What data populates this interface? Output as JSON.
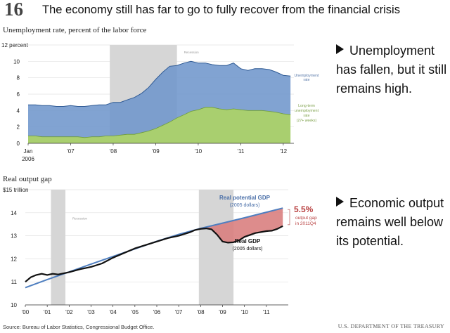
{
  "header": {
    "slide_number": "16",
    "title": "The economy still has far to go to fully recover from the financial crisis"
  },
  "bullets": [
    {
      "text": "Unemployment has fallen, but it still remains high."
    },
    {
      "text": "Economic output remains well below its potential."
    }
  ],
  "footer": {
    "source": "Source: Bureau of Labor Statistics, Congressional Budget Office.",
    "agency": "U.S. DEPARTMENT OF THE TREASURY"
  },
  "colors": {
    "unemployment_fill": "#6f96cc",
    "longterm_fill": "#a9cf6f",
    "recession": "#d6d6d6",
    "potential_line": "#4f7fc0",
    "gap_fill": "#d98080",
    "gap_text": "#b84040",
    "real_gdp_line": "#111111"
  },
  "chart_data": [
    {
      "type": "area",
      "title": "Unemployment rate, percent of the labor force",
      "x_tick_labels": [
        "Jan\n2006",
        "'07",
        "'08",
        "'09",
        "'10",
        "'11",
        "'12"
      ],
      "x_ticks": [
        2006.0,
        2007.0,
        2008.0,
        2009.0,
        2010.0,
        2011.0,
        2012.0
      ],
      "xlim": [
        2006.0,
        2012.25
      ],
      "ylim": [
        0,
        12
      ],
      "y_ticks": [
        0,
        2,
        4,
        6,
        8,
        10,
        12
      ],
      "y_tick_labels": [
        "0",
        "2",
        "4",
        "6",
        "8",
        "10",
        "12 percent"
      ],
      "recession": {
        "start": 2007.92,
        "end": 2009.5,
        "label": "Recession"
      },
      "series": [
        {
          "name": "Unemployment rate",
          "label": "Unemployment rate",
          "x": [
            2006.0,
            2006.17,
            2006.33,
            2006.5,
            2006.67,
            2006.83,
            2007.0,
            2007.17,
            2007.33,
            2007.5,
            2007.67,
            2007.83,
            2008.0,
            2008.17,
            2008.33,
            2008.5,
            2008.67,
            2008.83,
            2009.0,
            2009.17,
            2009.33,
            2009.5,
            2009.67,
            2009.83,
            2010.0,
            2010.17,
            2010.33,
            2010.5,
            2010.67,
            2010.83,
            2011.0,
            2011.17,
            2011.33,
            2011.5,
            2011.67,
            2011.83,
            2012.0,
            2012.17
          ],
          "values": [
            4.7,
            4.7,
            4.6,
            4.6,
            4.5,
            4.5,
            4.6,
            4.5,
            4.5,
            4.6,
            4.7,
            4.7,
            5.0,
            5.0,
            5.3,
            5.6,
            6.1,
            6.8,
            7.8,
            8.7,
            9.4,
            9.5,
            9.8,
            10.0,
            9.8,
            9.8,
            9.6,
            9.5,
            9.5,
            9.8,
            9.1,
            8.9,
            9.1,
            9.1,
            9.0,
            8.7,
            8.3,
            8.2
          ]
        },
        {
          "name": "Long-term unemployment rate (27+ weeks)",
          "label": "Long-term unemployment rate (27+ weeks)",
          "x": [
            2006.0,
            2006.17,
            2006.33,
            2006.5,
            2006.67,
            2006.83,
            2007.0,
            2007.17,
            2007.33,
            2007.5,
            2007.67,
            2007.83,
            2008.0,
            2008.17,
            2008.33,
            2008.5,
            2008.67,
            2008.83,
            2009.0,
            2009.17,
            2009.33,
            2009.5,
            2009.67,
            2009.83,
            2010.0,
            2010.17,
            2010.33,
            2010.5,
            2010.67,
            2010.83,
            2011.0,
            2011.17,
            2011.33,
            2011.5,
            2011.67,
            2011.83,
            2012.0,
            2012.17
          ],
          "values": [
            0.9,
            0.9,
            0.8,
            0.8,
            0.8,
            0.8,
            0.8,
            0.8,
            0.7,
            0.8,
            0.8,
            0.9,
            0.9,
            1.0,
            1.1,
            1.1,
            1.3,
            1.5,
            1.8,
            2.2,
            2.6,
            3.1,
            3.5,
            3.9,
            4.1,
            4.4,
            4.4,
            4.2,
            4.1,
            4.2,
            4.1,
            4.0,
            4.0,
            4.0,
            3.9,
            3.8,
            3.6,
            3.5
          ]
        }
      ]
    },
    {
      "type": "line",
      "title": "Real output gap",
      "x_tick_labels": [
        "'00",
        "'01",
        "'02",
        "'03",
        "'04",
        "'05",
        "'06",
        "'07",
        "'08",
        "'09",
        "'10",
        "'11"
      ],
      "x_ticks": [
        2000,
        2001,
        2002,
        2003,
        2004,
        2005,
        2006,
        2007,
        2008,
        2009,
        2010,
        2011
      ],
      "xlim": [
        2000,
        2012
      ],
      "ylim": [
        10,
        15
      ],
      "y_ticks": [
        10,
        11,
        12,
        13,
        14,
        15
      ],
      "y_tick_labels": [
        "10",
        "11",
        "12",
        "13",
        "14",
        "$15 trillion"
      ],
      "recessions": [
        {
          "start": 2001.17,
          "end": 2001.83,
          "label": "Recession"
        },
        {
          "start": 2007.92,
          "end": 2009.5,
          "label": ""
        }
      ],
      "potential_label": "Real potential GDP",
      "potential_sublabel": "(2005 dollars)",
      "real_label": "Real GDP",
      "real_sublabel": "(2005 dollars)",
      "gap_value": "5.5%",
      "gap_label": "output gap in 2011Q4",
      "series": [
        {
          "name": "Real potential GDP",
          "x": [
            2000,
            2001,
            2002,
            2003,
            2004,
            2005,
            2006,
            2007,
            2008,
            2009,
            2010,
            2011,
            2011.75
          ],
          "values": [
            10.75,
            11.1,
            11.43,
            11.77,
            12.1,
            12.43,
            12.76,
            13.06,
            13.32,
            13.55,
            13.78,
            14.02,
            14.2
          ]
        },
        {
          "name": "Real GDP",
          "x": [
            2000,
            2000.25,
            2000.5,
            2000.75,
            2001,
            2001.25,
            2001.5,
            2001.75,
            2002,
            2002.5,
            2003,
            2003.5,
            2004,
            2004.5,
            2005,
            2005.5,
            2006,
            2006.5,
            2007,
            2007.5,
            2007.75,
            2008,
            2008.25,
            2008.5,
            2008.75,
            2009,
            2009.25,
            2009.5,
            2009.75,
            2010,
            2010.5,
            2011,
            2011.25,
            2011.5,
            2011.75
          ],
          "values": [
            11.0,
            11.2,
            11.3,
            11.35,
            11.3,
            11.35,
            11.32,
            11.37,
            11.42,
            11.55,
            11.65,
            11.8,
            12.05,
            12.25,
            12.45,
            12.6,
            12.75,
            12.9,
            13.0,
            13.15,
            13.25,
            13.3,
            13.32,
            13.28,
            13.05,
            12.75,
            12.7,
            12.72,
            12.8,
            12.95,
            13.12,
            13.2,
            13.22,
            13.3,
            13.42
          ]
        }
      ]
    }
  ]
}
